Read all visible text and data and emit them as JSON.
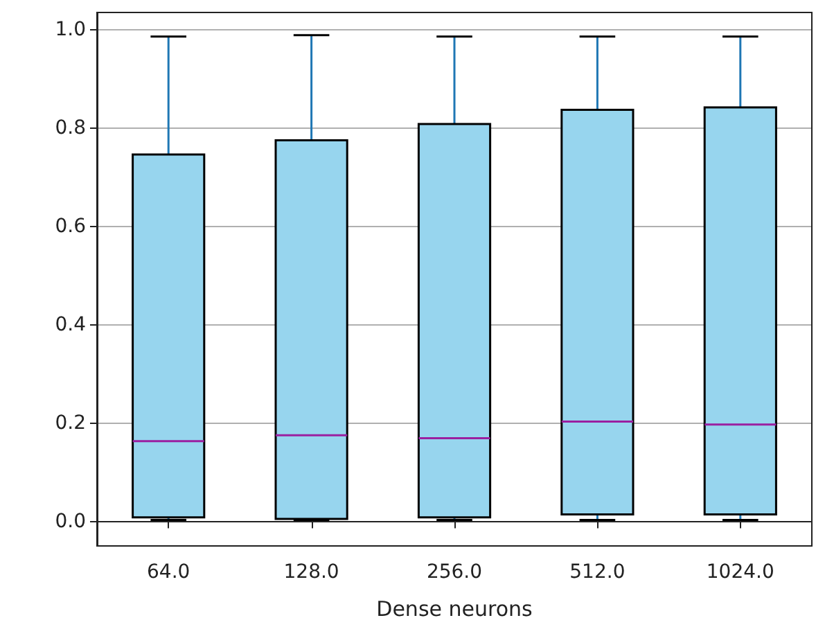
{
  "chart_data": {
    "type": "box",
    "xlabel": "Dense neurons",
    "categories": [
      "64.0",
      "128.0",
      "256.0",
      "512.0",
      "1024.0"
    ],
    "series": [
      {
        "color": "#97d5ee",
        "boxes": [
          {
            "low": 0.003,
            "q1": 0.008,
            "median": 0.163,
            "q3": 0.746,
            "high": 0.986
          },
          {
            "low": 0.003,
            "q1": 0.005,
            "median": 0.175,
            "q3": 0.775,
            "high": 0.989
          },
          {
            "low": 0.003,
            "q1": 0.008,
            "median": 0.169,
            "q3": 0.808,
            "high": 0.986
          },
          {
            "low": 0.003,
            "q1": 0.014,
            "median": 0.203,
            "q3": 0.837,
            "high": 0.986
          },
          {
            "low": 0.003,
            "q1": 0.014,
            "median": 0.197,
            "q3": 0.842,
            "high": 0.986
          }
        ]
      }
    ],
    "ylim": [
      -0.05,
      1.035
    ],
    "yticks": [
      {
        "value": 0,
        "label": "0.0"
      },
      {
        "value": 0.2,
        "label": "0.2"
      },
      {
        "value": 0.4,
        "label": "0.4"
      },
      {
        "value": 0.6,
        "label": "0.6"
      },
      {
        "value": 0.8,
        "label": "0.8"
      },
      {
        "value": 1,
        "label": "1.0"
      }
    ],
    "grid": "y"
  }
}
